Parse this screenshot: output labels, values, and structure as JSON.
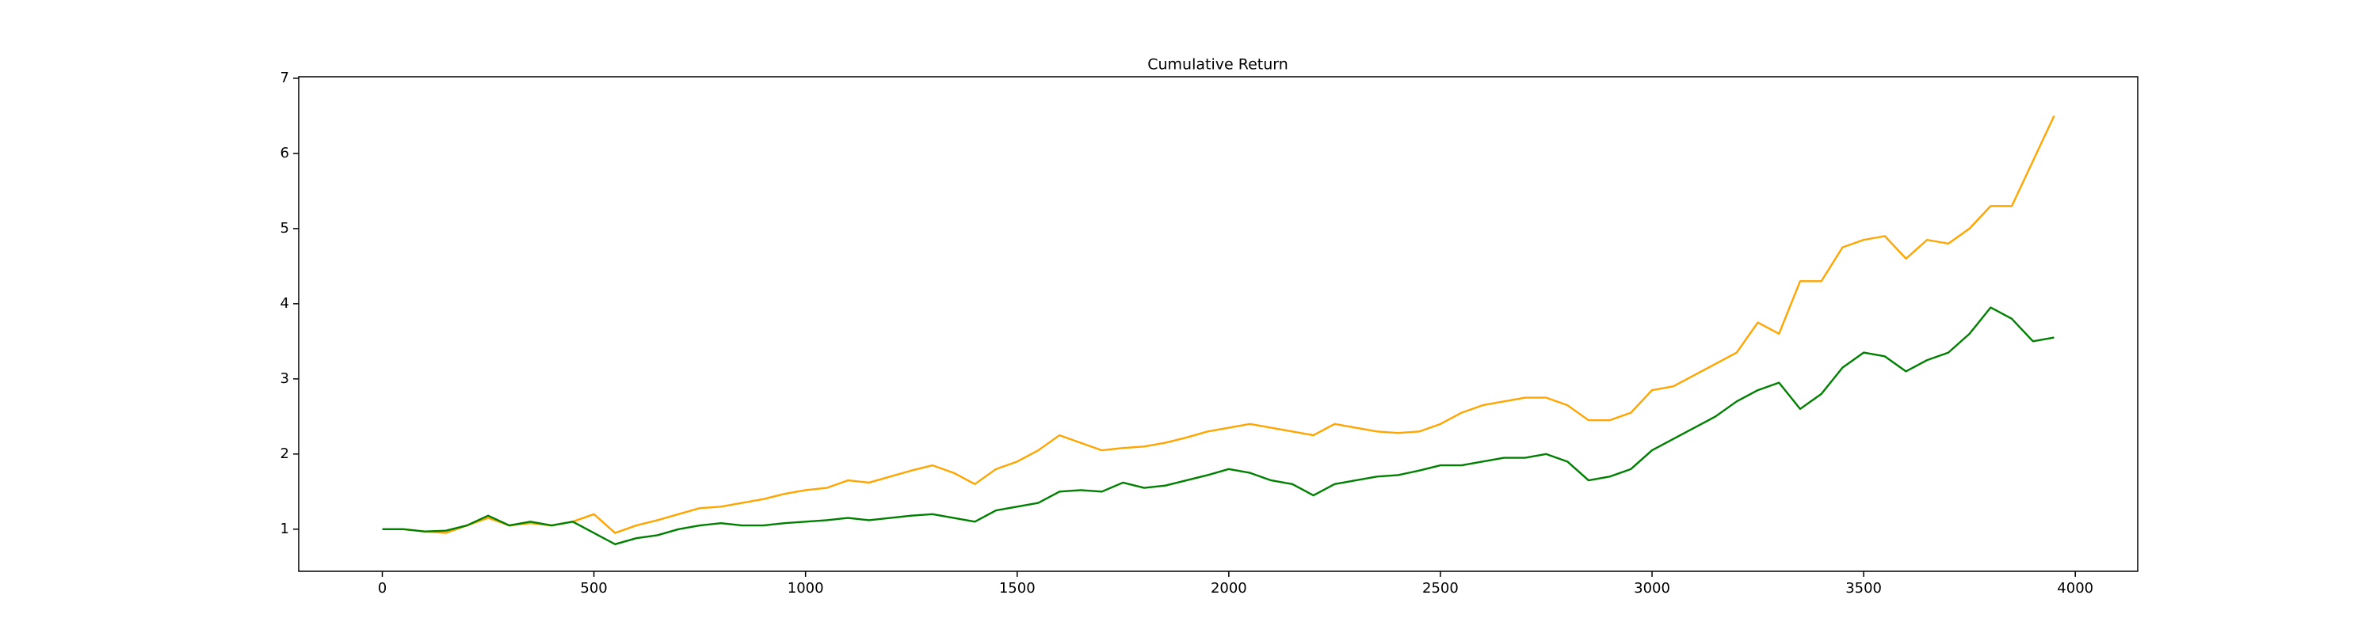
{
  "chart_data": {
    "type": "line",
    "title": "Cumulative Return",
    "x": [
      0,
      50,
      100,
      150,
      200,
      250,
      300,
      350,
      400,
      450,
      500,
      550,
      600,
      650,
      700,
      750,
      800,
      850,
      900,
      950,
      1000,
      1050,
      1100,
      1150,
      1200,
      1250,
      1300,
      1350,
      1400,
      1450,
      1500,
      1550,
      1600,
      1650,
      1700,
      1750,
      1800,
      1850,
      1900,
      1950,
      2000,
      2050,
      2100,
      2150,
      2200,
      2250,
      2300,
      2350,
      2400,
      2450,
      2500,
      2550,
      2600,
      2650,
      2700,
      2750,
      2800,
      2850,
      2900,
      2950,
      3000,
      3050,
      3100,
      3150,
      3200,
      3250,
      3300,
      3350,
      3400,
      3450,
      3500,
      3550,
      3600,
      3650,
      3700,
      3750,
      3800,
      3850,
      3900,
      3950
    ],
    "series": [
      {
        "color": "#ffa500",
        "values": [
          1.0,
          1.0,
          0.97,
          0.95,
          1.05,
          1.15,
          1.05,
          1.08,
          1.05,
          1.1,
          1.2,
          0.95,
          1.05,
          1.12,
          1.2,
          1.28,
          1.3,
          1.35,
          1.4,
          1.47,
          1.52,
          1.55,
          1.65,
          1.62,
          1.7,
          1.78,
          1.85,
          1.75,
          1.6,
          1.8,
          1.9,
          2.05,
          2.25,
          2.15,
          2.05,
          2.08,
          2.1,
          2.15,
          2.22,
          2.3,
          2.35,
          2.4,
          2.35,
          2.3,
          2.25,
          2.4,
          2.35,
          2.3,
          2.28,
          2.3,
          2.4,
          2.55,
          2.65,
          2.7,
          2.75,
          2.75,
          2.65,
          2.45,
          2.45,
          2.55,
          2.85,
          2.9,
          3.05,
          3.2,
          3.35,
          3.75,
          3.6,
          4.3,
          4.3,
          4.75,
          4.85,
          4.9,
          4.6,
          4.85,
          4.8,
          5.0,
          5.3,
          5.3,
          5.9,
          6.5
        ]
      },
      {
        "color": "#008000",
        "values": [
          1.0,
          1.0,
          0.97,
          0.98,
          1.05,
          1.18,
          1.05,
          1.1,
          1.05,
          1.1,
          0.95,
          0.8,
          0.88,
          0.92,
          1.0,
          1.05,
          1.08,
          1.05,
          1.05,
          1.08,
          1.1,
          1.12,
          1.15,
          1.12,
          1.15,
          1.18,
          1.2,
          1.15,
          1.1,
          1.25,
          1.3,
          1.35,
          1.5,
          1.52,
          1.5,
          1.62,
          1.55,
          1.58,
          1.65,
          1.72,
          1.8,
          1.75,
          1.65,
          1.6,
          1.45,
          1.6,
          1.65,
          1.7,
          1.72,
          1.78,
          1.85,
          1.85,
          1.9,
          1.95,
          1.95,
          2.0,
          1.9,
          1.65,
          1.7,
          1.8,
          2.05,
          2.2,
          2.35,
          2.5,
          2.7,
          2.85,
          2.95,
          2.6,
          2.8,
          3.15,
          3.35,
          3.3,
          3.1,
          3.25,
          3.35,
          3.6,
          3.95,
          3.8,
          3.5,
          3.55
        ]
      }
    ],
    "xlim": [
      -197.5,
      4147.5
    ],
    "xticks": [
      0,
      500,
      1000,
      1500,
      2000,
      2500,
      3000,
      3500,
      4000
    ],
    "ylim": [
      0.44,
      7.02
    ],
    "yticks": [
      1,
      2,
      3,
      4,
      5,
      6,
      7
    ],
    "grid": false
  }
}
